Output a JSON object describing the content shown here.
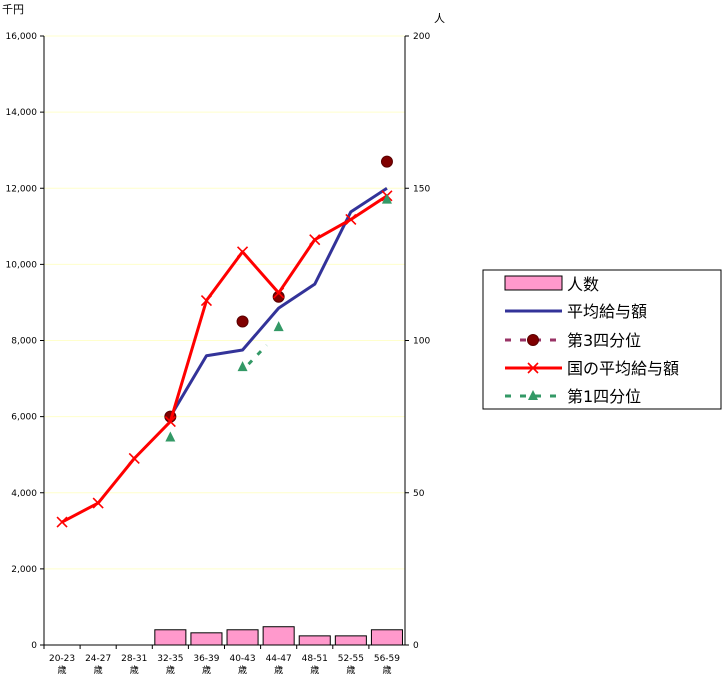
{
  "chart_data": {
    "type": "bar+line",
    "title": "",
    "ylabel_left": "千円",
    "ylabel_right": "人",
    "ylim_left": [
      0,
      16000
    ],
    "ylim_right": [
      0,
      200
    ],
    "yticks_left": [
      "0",
      "2,000",
      "4,000",
      "6,000",
      "8,000",
      "10,000",
      "12,000",
      "14,000",
      "16,000"
    ],
    "yticks_right": [
      "0",
      "50",
      "100",
      "150",
      "200"
    ],
    "categories": [
      [
        "20-23",
        "歳"
      ],
      [
        "24-27",
        "歳"
      ],
      [
        "28-31",
        "歳"
      ],
      [
        "32-35",
        "歳"
      ],
      [
        "36-39",
        "歳"
      ],
      [
        "40-43",
        "歳"
      ],
      [
        "44-47",
        "歳"
      ],
      [
        "48-51",
        "歳"
      ],
      [
        "52-55",
        "歳"
      ],
      [
        "56-59",
        "歳"
      ]
    ],
    "legend_placement": "right",
    "grid": true,
    "series": [
      {
        "name": "人数",
        "kind": "bar",
        "axis": "right",
        "color": "#ff99cc",
        "values": [
          0,
          0,
          0,
          5,
          4,
          5,
          6,
          3,
          3,
          5
        ]
      },
      {
        "name": "平均給与額",
        "kind": "line",
        "axis": "left",
        "color": "#333399",
        "values": [
          null,
          null,
          null,
          6000,
          7600,
          7750,
          8850,
          9480,
          11380,
          12000
        ]
      },
      {
        "name": "第3四分位",
        "kind": "scatter",
        "axis": "left",
        "color": "#800000",
        "values": [
          null,
          null,
          null,
          6000,
          null,
          8500,
          9150,
          null,
          null,
          12700
        ]
      },
      {
        "name": "国の平均給与額",
        "kind": "line",
        "axis": "left",
        "color": "#ff0000",
        "values": [
          3230,
          3730,
          4900,
          5870,
          9050,
          10330,
          9250,
          10650,
          11180,
          11800
        ]
      },
      {
        "name": "第1四分位",
        "kind": "scatter",
        "axis": "left",
        "color": "#339966",
        "values": [
          null,
          null,
          null,
          5450,
          null,
          7300,
          8350,
          null,
          null,
          11700
        ]
      }
    ]
  }
}
